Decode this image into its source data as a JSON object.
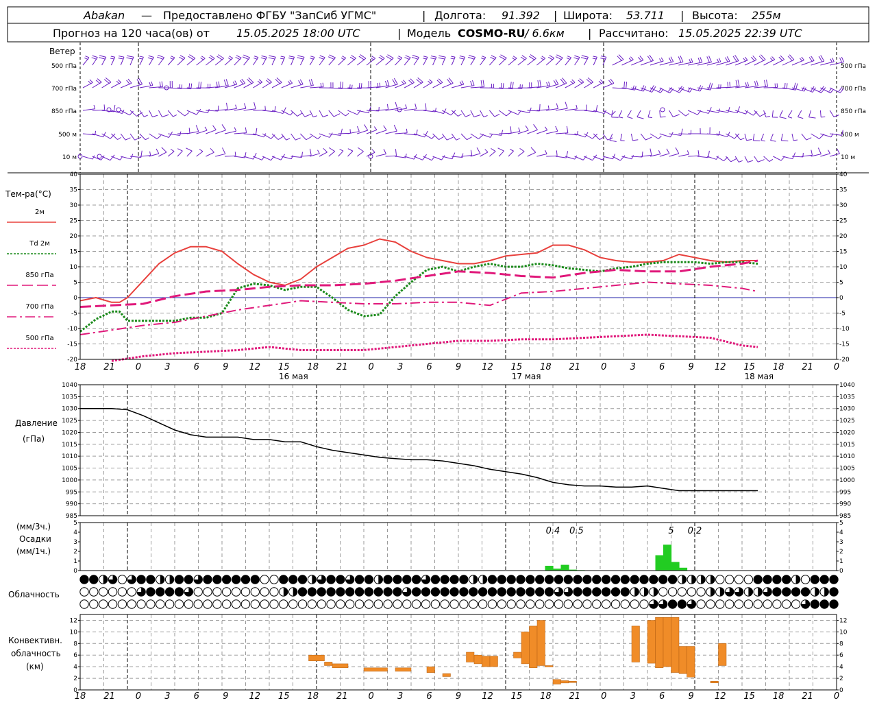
{
  "header": {
    "station": "Abakan",
    "dash": "—",
    "provider": "Предоставлено ФГБУ \"ЗапСиб УГМС\"",
    "lon_label": "Долгота:",
    "lon": "91.392",
    "lat_label": "Широта:",
    "lat": "53.711",
    "alt_label": "Высота:",
    "alt": "255м",
    "forecast_label": "Прогноз на 120 часа(ов) от",
    "forecast_start": "15.05.2025 18:00 UTC",
    "model_label": "Модель",
    "model": "COSMO-RU",
    "model_res": "/ 6.6км",
    "calc_label": "Рассчитано:",
    "calc_time": "15.05.2025 22:39 UTC"
  },
  "labels": {
    "wind": "Ветер",
    "wind_levels": [
      "500 гПа",
      "700 гПа",
      "850 гПа",
      "500 м",
      "10 м"
    ],
    "temp": "Тем-ра(°C)",
    "legend": [
      {
        "name": "2м",
        "color": "#e8403c"
      },
      {
        "name": "Td  2м",
        "color": "#1a8a1a"
      },
      {
        "name": "850 гПа",
        "color": "#e0187a"
      },
      {
        "name": "700 гПа",
        "color": "#e0187a"
      },
      {
        "name": "500 гПа",
        "color": "#e0187a"
      }
    ],
    "pressure_1": "Давление",
    "pressure_2": "(гПа)",
    "precip_1": "(мм/3ч.)",
    "precip_2": "Осадки",
    "precip_3": "(мм/1ч.)",
    "cloud": "Облачность",
    "conv_1": "Конвективн.",
    "conv_2": "облачность",
    "conv_3": "(км)"
  },
  "time_axis": {
    "hour_labels": [
      "18",
      "21",
      "0",
      "3",
      "6",
      "9",
      "12",
      "15",
      "18",
      "21",
      "0",
      "3",
      "6",
      "9",
      "12",
      "15",
      "18",
      "21",
      "0",
      "3",
      "6",
      "9",
      "12",
      "15",
      "18",
      "21",
      "0"
    ],
    "dates": [
      {
        "label": "16 мая",
        "hour_offset": 18
      },
      {
        "label": "17 мая",
        "hour_offset": 42
      },
      {
        "label": "18 мая",
        "hour_offset": 66
      }
    ]
  },
  "chart_data": [
    {
      "type": "line",
      "title": "Тем-ра(°C)",
      "x_unit": "hours from 15.05.2025 18:00 UTC",
      "ylim": [
        -20,
        40
      ],
      "yticks": [
        -20,
        -15,
        -10,
        -5,
        0,
        5,
        10,
        15,
        20,
        25,
        30,
        35,
        40
      ],
      "series": [
        {
          "name": "2м",
          "color": "#e8403c",
          "style": "solid",
          "x": [
            0,
            2,
            4,
            5,
            6,
            8,
            10,
            12,
            14,
            16,
            18,
            20,
            22,
            24,
            26,
            28,
            30,
            32,
            34,
            36,
            38,
            40,
            42,
            44,
            46,
            48,
            50,
            52,
            54,
            56,
            58,
            60,
            62,
            64,
            66,
            68,
            70,
            72,
            74,
            76,
            78,
            80,
            82,
            84,
            86
          ],
          "y": [
            -1,
            0,
            -1.5,
            -1.5,
            0,
            5.5,
            11,
            14.5,
            16.5,
            16.5,
            15,
            11,
            7.5,
            5,
            4,
            6,
            10,
            13,
            16,
            17,
            19,
            18,
            15,
            13,
            12,
            11,
            11,
            12,
            13.5,
            14,
            14.5,
            17,
            17,
            15.5,
            13,
            12,
            11.5,
            11.5,
            12,
            14,
            13,
            12,
            11.5,
            12,
            12
          ]
        },
        {
          "name": "Td  2м",
          "color": "#1a8a1a",
          "style": "dotted",
          "x": [
            0,
            2,
            4,
            5,
            6,
            8,
            10,
            12,
            14,
            16,
            18,
            20,
            22,
            24,
            26,
            28,
            30,
            32,
            34,
            36,
            38,
            40,
            42,
            44,
            46,
            48,
            50,
            52,
            54,
            56,
            58,
            60,
            62,
            64,
            66,
            68,
            70,
            72,
            74,
            76,
            78,
            80,
            82,
            84,
            86
          ],
          "y": [
            -11,
            -7,
            -4.5,
            -4.5,
            -7.5,
            -7.5,
            -7.5,
            -7.5,
            -6.5,
            -6.5,
            -5,
            3,
            4.5,
            4,
            2.5,
            3.5,
            3.5,
            0,
            -4,
            -6,
            -5.5,
            0.5,
            5,
            9,
            10,
            8.5,
            10,
            11,
            10,
            10,
            11,
            10.5,
            9.5,
            9,
            8.5,
            9.5,
            10,
            11,
            11.5,
            11.5,
            11.5,
            11,
            11.5,
            11.5,
            11
          ]
        },
        {
          "name": "850 гПа",
          "color": "#e0187a",
          "style": "longdash",
          "x": [
            0,
            4,
            8,
            12,
            16,
            20,
            24,
            28,
            32,
            36,
            40,
            44,
            48,
            52,
            56,
            60,
            64,
            68,
            72,
            76,
            80,
            84,
            86
          ],
          "y": [
            -3,
            -2.5,
            -2,
            0.5,
            2,
            2.5,
            3.5,
            4,
            4,
            4.5,
            5.5,
            7,
            8.5,
            8,
            7,
            6.5,
            8,
            9,
            8.5,
            8.5,
            10,
            11,
            12
          ]
        },
        {
          "name": "700 гПа",
          "color": "#e0187a",
          "style": "dashdot",
          "x": [
            0,
            4,
            8,
            12,
            16,
            20,
            24,
            28,
            32,
            36,
            40,
            44,
            48,
            52,
            56,
            60,
            64,
            68,
            72,
            76,
            80,
            84,
            86
          ],
          "y": [
            -12,
            -10.5,
            -9,
            -8,
            -6,
            -4,
            -2.5,
            -1,
            -1.5,
            -2,
            -2,
            -1.5,
            -1.5,
            -2.5,
            1.5,
            2,
            3,
            4,
            5,
            4.5,
            4,
            3,
            2
          ]
        },
        {
          "name": "500 гПа",
          "color": "#e0187a",
          "style": "dotted",
          "x": [
            0,
            4,
            8,
            12,
            16,
            20,
            24,
            28,
            32,
            36,
            40,
            44,
            48,
            52,
            56,
            60,
            64,
            68,
            72,
            76,
            80,
            84,
            86
          ],
          "y": [
            null,
            -20.5,
            -19,
            -18,
            -17.5,
            -17,
            -16,
            -17,
            -17,
            -17,
            -16,
            -15,
            -14,
            -14,
            -13.5,
            -13.5,
            -13,
            -12.5,
            -12,
            -12.5,
            -13,
            -15.5,
            -16
          ]
        }
      ]
    },
    {
      "type": "line",
      "title": "Давление",
      "ylabel": "(гПа)",
      "x_unit": "hours from 15.05.2025 18:00 UTC",
      "ylim": [
        985,
        1040
      ],
      "yticks": [
        985,
        990,
        995,
        1000,
        1005,
        1010,
        1015,
        1020,
        1025,
        1030,
        1035,
        1040
      ],
      "series": [
        {
          "name": "Давление",
          "color": "#000000",
          "x": [
            0,
            2,
            4,
            6,
            8,
            10,
            12,
            14,
            16,
            18,
            20,
            22,
            24,
            26,
            28,
            30,
            32,
            34,
            36,
            38,
            40,
            42,
            44,
            46,
            48,
            50,
            52,
            54,
            56,
            58,
            60,
            62,
            64,
            66,
            68,
            70,
            72,
            74,
            76,
            78,
            80,
            82,
            84,
            86
          ],
          "y": [
            1030,
            1030,
            1030,
            1029.5,
            1027,
            1024,
            1021,
            1019,
            1018,
            1018,
            1018,
            1017,
            1017,
            1016,
            1016,
            1014,
            1012.5,
            1011.5,
            1010.5,
            1009.5,
            1009,
            1008.5,
            1008.5,
            1008,
            1007,
            1006,
            1004.5,
            1003.5,
            1002.5,
            1001,
            999,
            998,
            997.5,
            997.5,
            997,
            997,
            997.5,
            996.5,
            995.5,
            995.5,
            995.5,
            995.5,
            995.5,
            995.5
          ]
        }
      ]
    },
    {
      "type": "bar",
      "title": "Осадки",
      "ylabel": "(мм/3ч.) (мм/1ч.)",
      "x_unit": "hours from 15.05.2025 18:00 UTC",
      "ylim": [
        0,
        5
      ],
      "yticks": [
        0,
        1,
        2,
        3,
        4,
        5
      ],
      "series": [
        {
          "name": "мм/1ч.",
          "color": "#22cc22",
          "x": [
            59,
            60,
            61,
            62,
            63,
            73,
            74,
            75,
            76
          ],
          "values": [
            0.5,
            0.2,
            0.6,
            0.1,
            0.05,
            1.6,
            2.7,
            0.9,
            0.3
          ]
        }
      ],
      "annotations": [
        {
          "text": "0.4",
          "x": 60
        },
        {
          "text": "0.5",
          "x": 63
        },
        {
          "text": "5",
          "x": 75
        },
        {
          "text": "0.2",
          "x": 78
        }
      ]
    },
    {
      "type": "bar",
      "title": "Конвективн. облачность",
      "ylabel": "(км)",
      "x_unit": "hours from 15.05.2025 18:00 UTC",
      "ylim": [
        0,
        13
      ],
      "yticks": [
        0,
        2,
        4,
        6,
        8,
        10,
        12
      ],
      "series": [
        {
          "name": "Конвективн. облачность",
          "color": "#f08c28",
          "x_start": [
            29,
            31,
            32,
            36,
            40,
            44,
            46,
            49,
            50,
            51,
            52,
            55,
            56,
            57,
            58,
            59,
            60,
            61,
            62,
            70,
            72,
            73,
            74,
            75,
            76,
            77,
            80,
            81
          ],
          "x_end": [
            31,
            32,
            34,
            39,
            42,
            45,
            47,
            50,
            51,
            52,
            53,
            56,
            57,
            58,
            59,
            60,
            61,
            62,
            63,
            71,
            73,
            74,
            75,
            76,
            77,
            78,
            81,
            82
          ],
          "bottom": [
            5,
            4.2,
            3.8,
            3.2,
            3.2,
            3.0,
            2.3,
            4.8,
            4.5,
            4.0,
            4.0,
            5.5,
            4.5,
            3.8,
            4.2,
            4.2,
            1.0,
            1.2,
            1.3,
            4.8,
            4.6,
            3.8,
            4.0,
            3.0,
            2.8,
            2.2,
            1.2,
            4.2
          ],
          "top": [
            6,
            4.8,
            4.5,
            3.8,
            3.8,
            4.0,
            2.8,
            6.5,
            6.0,
            5.8,
            5.8,
            6.5,
            10.0,
            11.0,
            12.0,
            4.2,
            1.8,
            1.6,
            1.5,
            11.0,
            12.0,
            12.5,
            12.5,
            12.5,
            7.5,
            7.5,
            1.5,
            8.0
          ]
        }
      ]
    }
  ]
}
